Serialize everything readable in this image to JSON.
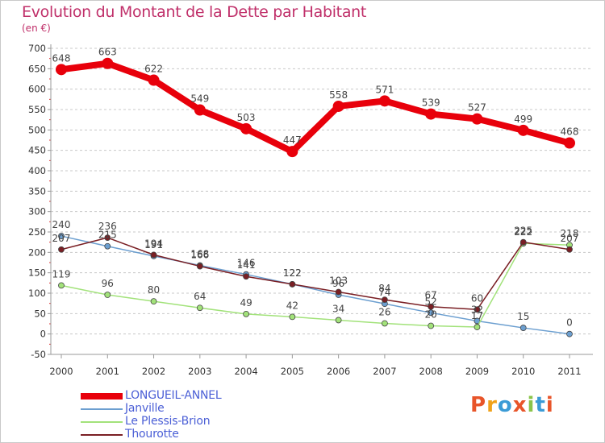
{
  "header": {
    "title": "Evolution du Montant de la Dette par Habitant",
    "unit": "(en €)"
  },
  "brand": {
    "text": "Proxiti",
    "colors": [
      "#e8552a",
      "#f0a21a",
      "#3b9bd6",
      "#e8552a",
      "#8ac44a",
      "#3b9bd6",
      "#e8552a"
    ]
  },
  "chart_data": {
    "type": "line",
    "x": [
      "2000",
      "2001",
      "2002",
      "2003",
      "2004",
      "2005",
      "2006",
      "2007",
      "2008",
      "2009",
      "2010",
      "2011"
    ],
    "ylim": [
      -50,
      700
    ],
    "yticks": [
      -50,
      0,
      50,
      100,
      150,
      200,
      250,
      300,
      350,
      400,
      450,
      500,
      550,
      600,
      650,
      700
    ],
    "grid": "horizontal-dashed",
    "legend": "bottom-left",
    "series": [
      {
        "name": "LONGUEIL-ANNEL",
        "color": "#e8000b",
        "values": [
          648,
          663,
          622,
          549,
          503,
          447,
          558,
          571,
          539,
          527,
          499,
          468
        ]
      },
      {
        "name": "Janville",
        "color": "#6c9fd0",
        "values": [
          240,
          215,
          191,
          168,
          146,
          122,
          96,
          74,
          52,
          32,
          15,
          0
        ]
      },
      {
        "name": "Le Plessis-Brion",
        "color": "#a2e27a",
        "values": [
          119,
          96,
          80,
          64,
          49,
          42,
          34,
          26,
          20,
          17,
          222,
          218
        ]
      },
      {
        "name": "Thourotte",
        "color": "#7a1f24",
        "values": [
          207,
          236,
          194,
          166,
          141,
          122,
          103,
          84,
          67,
          60,
          225,
          207
        ]
      }
    ]
  }
}
